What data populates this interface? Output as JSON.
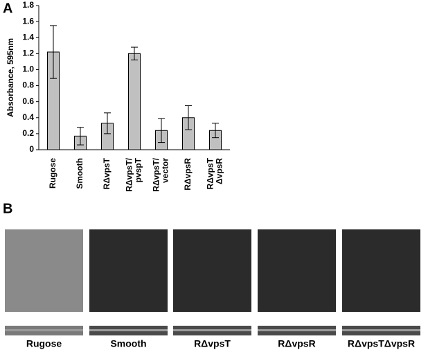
{
  "chart_data": {
    "type": "bar",
    "panel_label": "A",
    "ylabel": "Absorbance, 595nm",
    "categories": [
      [
        "Rugose"
      ],
      [
        "Smooth"
      ],
      [
        "RΔvpsT"
      ],
      [
        "RΔvpsT/",
        "pvspT"
      ],
      [
        "RΔvpsT/",
        "vector"
      ],
      [
        "RΔvpsR"
      ],
      [
        "RΔvpsT",
        "ΔvpsR"
      ]
    ],
    "values": [
      1.22,
      0.17,
      0.33,
      1.2,
      0.24,
      0.4,
      0.24
    ],
    "errors": [
      0.33,
      0.11,
      0.13,
      0.08,
      0.15,
      0.15,
      0.09
    ],
    "color": "#c0c0c0",
    "ylim": [
      0,
      1.8
    ],
    "yticks": [
      0,
      0.2,
      0.4,
      0.6,
      0.8,
      {
        "value": 1,
        "label": "1.0"
      },
      1.2,
      1.4,
      1.6,
      1.8
    ]
  },
  "panel_b": {
    "label": "B",
    "images": [
      "Rugose",
      "Smooth",
      "RΔvpsT",
      "RΔvpsR",
      "RΔvpsTΔvpsR"
    ]
  }
}
